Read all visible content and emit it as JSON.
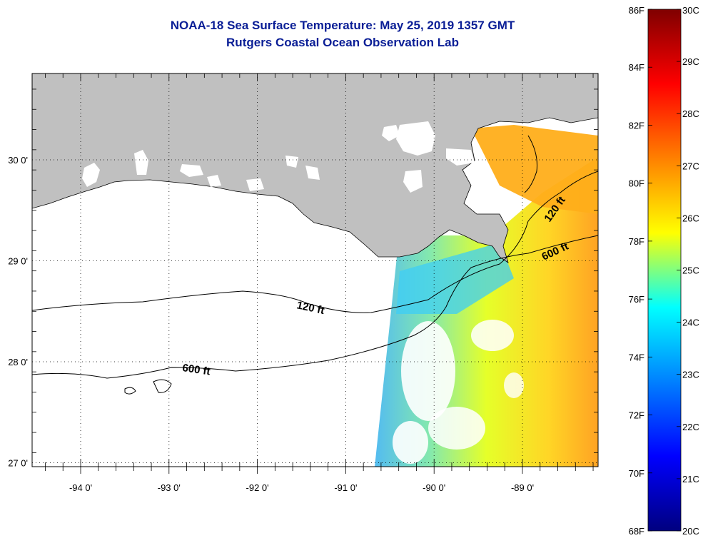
{
  "header": {
    "title": "NOAA-18 Sea Surface Temperature:  May 25, 2019 1357 GMT",
    "subtitle": "Rutgers Coastal Ocean Observation Lab"
  },
  "map": {
    "lon_ticks": [
      {
        "value": -94,
        "label": "-94 0'"
      },
      {
        "value": -93,
        "label": "-93 0'"
      },
      {
        "value": -92,
        "label": "-92 0'"
      },
      {
        "value": -91,
        "label": "-91 0'"
      },
      {
        "value": -90,
        "label": "-90 0'"
      },
      {
        "value": -89,
        "label": "-89 0'"
      }
    ],
    "lat_ticks": [
      {
        "value": 30,
        "label": "30 0'"
      },
      {
        "value": 29,
        "label": "29 0'"
      },
      {
        "value": 28,
        "label": "28 0'"
      },
      {
        "value": 27,
        "label": "27 0'"
      }
    ],
    "contour_labels": {
      "west_120": "120 ft",
      "west_600": "600 ft",
      "east_120": "120 ft",
      "east_600": "600 ft"
    },
    "colors": {
      "land": "#c0c0c0",
      "water": "#ffffff",
      "frame": "#000000"
    }
  },
  "colorbar": {
    "f_labels": [
      "86F",
      "84F",
      "82F",
      "80F",
      "78F",
      "76F",
      "74F",
      "72F",
      "70F",
      "68F"
    ],
    "c_labels": [
      "30C",
      "29C",
      "28C",
      "27C",
      "26C",
      "25C",
      "24C",
      "23C",
      "22C",
      "21C",
      "20C"
    ],
    "colors": [
      "#7f0000",
      "#ff0000",
      "#ff8000",
      "#ffff00",
      "#00ffff",
      "#0080ff",
      "#0000ff",
      "#00007f"
    ]
  }
}
